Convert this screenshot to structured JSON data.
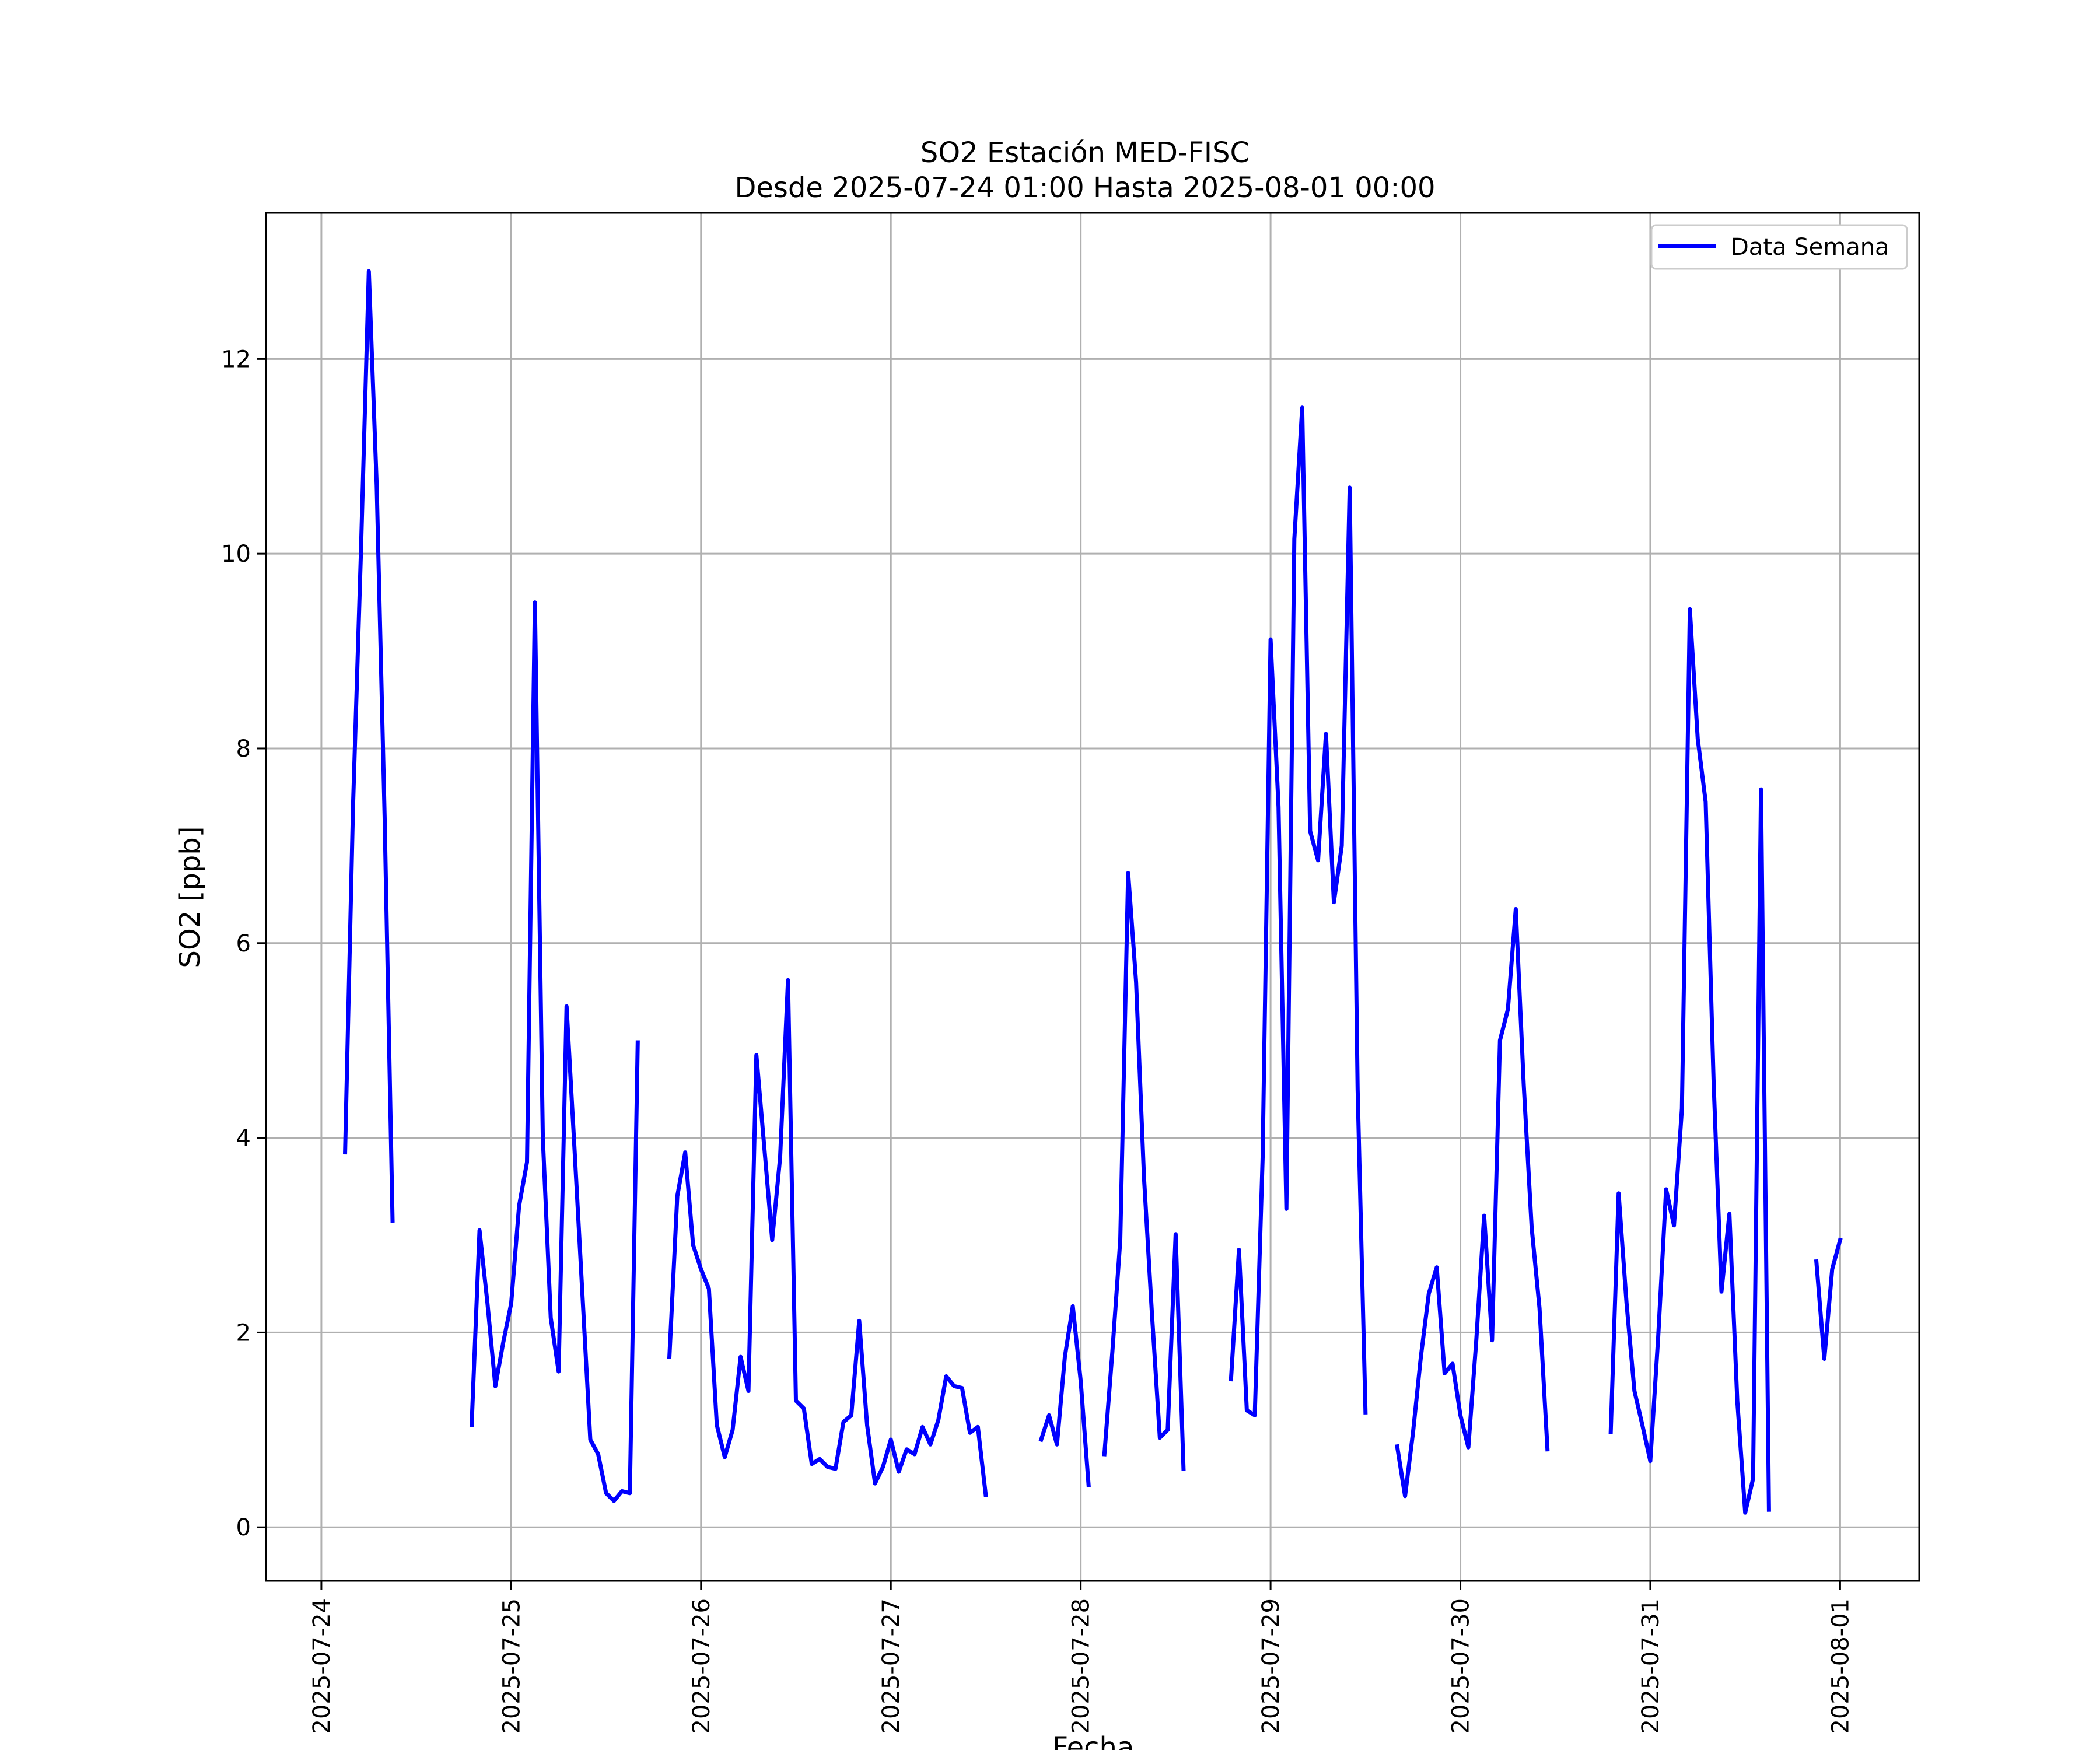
{
  "chart_data": {
    "type": "line",
    "title": "SO2 Estación MED-FISC",
    "subtitle": "Desde 2025-07-24 01:00 Hasta 2025-08-01 00:00",
    "xlabel": "Fecha",
    "ylabel": "SO2 [ppb]",
    "xlim": [
      "2025-07-23 17:00",
      "2025-08-01 10:00"
    ],
    "ylim": [
      -0.55,
      13.5
    ],
    "x_ticks": [
      "2025-07-24",
      "2025-07-25",
      "2025-07-26",
      "2025-07-27",
      "2025-07-28",
      "2025-07-29",
      "2025-07-30",
      "2025-07-31",
      "2025-08-01"
    ],
    "y_ticks": [
      0,
      2,
      4,
      6,
      8,
      10,
      12
    ],
    "grid": true,
    "legend_position": "top-right",
    "series": [
      {
        "name": "Data Semana",
        "color": "#0000ff",
        "segments": [
          [
            [
              "2025-07-24 03:00",
              3.85
            ],
            [
              "2025-07-24 04:00",
              7.4
            ],
            [
              "2025-07-24 05:00",
              10.0
            ],
            [
              "2025-07-24 06:00",
              12.9
            ],
            [
              "2025-07-24 07:00",
              10.7
            ],
            [
              "2025-07-24 08:00",
              7.3
            ],
            [
              "2025-07-24 09:00",
              3.15
            ]
          ],
          [
            [
              "2025-07-24 19:00",
              1.05
            ],
            [
              "2025-07-24 20:00",
              3.05
            ],
            [
              "2025-07-24 21:00",
              2.3
            ],
            [
              "2025-07-24 22:00",
              1.45
            ],
            [
              "2025-07-24 23:00",
              1.9
            ],
            [
              "2025-07-25 00:00",
              2.3
            ],
            [
              "2025-07-25 01:00",
              3.3
            ],
            [
              "2025-07-25 02:00",
              3.75
            ],
            [
              "2025-07-25 03:00",
              9.5
            ],
            [
              "2025-07-25 04:00",
              4.0
            ],
            [
              "2025-07-25 05:00",
              2.15
            ],
            [
              "2025-07-25 06:00",
              1.6
            ],
            [
              "2025-07-25 07:00",
              5.35
            ],
            [
              "2025-07-25 08:00",
              3.9
            ],
            [
              "2025-07-25 09:00",
              2.4
            ],
            [
              "2025-07-25 10:00",
              0.9
            ],
            [
              "2025-07-25 11:00",
              0.75
            ],
            [
              "2025-07-25 12:00",
              0.35
            ],
            [
              "2025-07-25 13:00",
              0.27
            ],
            [
              "2025-07-25 14:00",
              0.37
            ],
            [
              "2025-07-25 15:00",
              0.35
            ],
            [
              "2025-07-25 16:00",
              4.98
            ]
          ],
          [
            [
              "2025-07-25 20:00",
              1.75
            ],
            [
              "2025-07-25 21:00",
              3.4
            ],
            [
              "2025-07-25 22:00",
              3.85
            ],
            [
              "2025-07-25 23:00",
              2.9
            ],
            [
              "2025-07-26 00:00",
              2.65
            ],
            [
              "2025-07-26 01:00",
              2.45
            ],
            [
              "2025-07-26 02:00",
              1.05
            ],
            [
              "2025-07-26 03:00",
              0.72
            ],
            [
              "2025-07-26 04:00",
              1.0
            ],
            [
              "2025-07-26 05:00",
              1.75
            ],
            [
              "2025-07-26 06:00",
              1.4
            ],
            [
              "2025-07-26 07:00",
              4.85
            ],
            [
              "2025-07-26 08:00",
              3.9
            ],
            [
              "2025-07-26 09:00",
              2.95
            ],
            [
              "2025-07-26 10:00",
              3.8
            ],
            [
              "2025-07-26 11:00",
              5.62
            ],
            [
              "2025-07-26 12:00",
              1.3
            ],
            [
              "2025-07-26 13:00",
              1.22
            ],
            [
              "2025-07-26 14:00",
              0.65
            ],
            [
              "2025-07-26 15:00",
              0.7
            ],
            [
              "2025-07-26 16:00",
              0.62
            ],
            [
              "2025-07-26 17:00",
              0.6
            ],
            [
              "2025-07-26 18:00",
              1.08
            ],
            [
              "2025-07-26 19:00",
              1.15
            ],
            [
              "2025-07-26 20:00",
              2.12
            ],
            [
              "2025-07-26 21:00",
              1.05
            ],
            [
              "2025-07-26 22:00",
              0.45
            ],
            [
              "2025-07-26 23:00",
              0.62
            ],
            [
              "2025-07-27 00:00",
              0.9
            ],
            [
              "2025-07-27 01:00",
              0.57
            ],
            [
              "2025-07-27 02:00",
              0.8
            ],
            [
              "2025-07-27 03:00",
              0.75
            ],
            [
              "2025-07-27 04:00",
              1.03
            ],
            [
              "2025-07-27 05:00",
              0.85
            ],
            [
              "2025-07-27 06:00",
              1.1
            ],
            [
              "2025-07-27 07:00",
              1.55
            ],
            [
              "2025-07-27 08:00",
              1.45
            ],
            [
              "2025-07-27 09:00",
              1.43
            ],
            [
              "2025-07-27 10:00",
              0.97
            ],
            [
              "2025-07-27 11:00",
              1.03
            ],
            [
              "2025-07-27 12:00",
              0.33
            ]
          ],
          [
            [
              "2025-07-27 19:00",
              0.9
            ],
            [
              "2025-07-27 20:00",
              1.15
            ],
            [
              "2025-07-27 21:00",
              0.85
            ],
            [
              "2025-07-27 22:00",
              1.75
            ],
            [
              "2025-07-27 23:00",
              2.27
            ],
            [
              "2025-07-28 00:00",
              1.5
            ],
            [
              "2025-07-28 01:00",
              0.43
            ]
          ],
          [
            [
              "2025-07-28 03:00",
              0.75
            ],
            [
              "2025-07-28 04:00",
              1.8
            ],
            [
              "2025-07-28 05:00",
              2.95
            ],
            [
              "2025-07-28 06:00",
              6.72
            ],
            [
              "2025-07-28 07:00",
              5.6
            ],
            [
              "2025-07-28 08:00",
              3.6
            ],
            [
              "2025-07-28 09:00",
              2.2
            ],
            [
              "2025-07-28 10:00",
              0.92
            ],
            [
              "2025-07-28 11:00",
              1.0
            ],
            [
              "2025-07-28 12:00",
              3.01
            ],
            [
              "2025-07-28 13:00",
              0.6
            ]
          ],
          [
            [
              "2025-07-28 19:00",
              1.52
            ],
            [
              "2025-07-28 20:00",
              2.85
            ],
            [
              "2025-07-28 21:00",
              1.2
            ],
            [
              "2025-07-28 22:00",
              1.15
            ],
            [
              "2025-07-28 23:00",
              3.8
            ],
            [
              "2025-07-29 00:00",
              9.12
            ],
            [
              "2025-07-29 01:00",
              7.4
            ],
            [
              "2025-07-29 02:00",
              3.27
            ],
            [
              "2025-07-29 03:00",
              10.15
            ],
            [
              "2025-07-29 04:00",
              11.5
            ],
            [
              "2025-07-29 05:00",
              7.15
            ],
            [
              "2025-07-29 06:00",
              6.85
            ],
            [
              "2025-07-29 07:00",
              8.15
            ],
            [
              "2025-07-29 08:00",
              6.42
            ],
            [
              "2025-07-29 09:00",
              7.0
            ],
            [
              "2025-07-29 10:00",
              10.68
            ],
            [
              "2025-07-29 11:00",
              4.5
            ],
            [
              "2025-07-29 12:00",
              1.18
            ]
          ],
          [
            [
              "2025-07-29 16:00",
              0.83
            ],
            [
              "2025-07-29 17:00",
              0.32
            ],
            [
              "2025-07-29 18:00",
              0.97
            ],
            [
              "2025-07-29 19:00",
              1.75
            ],
            [
              "2025-07-29 20:00",
              2.4
            ],
            [
              "2025-07-29 21:00",
              2.67
            ],
            [
              "2025-07-29 22:00",
              1.58
            ],
            [
              "2025-07-29 23:00",
              1.68
            ],
            [
              "2025-07-30 00:00",
              1.15
            ],
            [
              "2025-07-30 01:00",
              0.82
            ],
            [
              "2025-07-30 02:00",
              1.92
            ],
            [
              "2025-07-30 03:00",
              3.2
            ],
            [
              "2025-07-30 04:00",
              1.92
            ],
            [
              "2025-07-30 05:00",
              5.0
            ],
            [
              "2025-07-30 06:00",
              5.32
            ],
            [
              "2025-07-30 07:00",
              6.35
            ],
            [
              "2025-07-30 08:00",
              4.55
            ],
            [
              "2025-07-30 09:00",
              3.08
            ],
            [
              "2025-07-30 10:00",
              2.25
            ],
            [
              "2025-07-30 11:00",
              0.8
            ]
          ],
          [
            [
              "2025-07-30 19:00",
              0.98
            ],
            [
              "2025-07-30 20:00",
              3.43
            ],
            [
              "2025-07-30 21:00",
              2.3
            ],
            [
              "2025-07-30 22:00",
              1.4
            ],
            [
              "2025-07-30 23:00",
              1.05
            ],
            [
              "2025-07-31 00:00",
              0.68
            ],
            [
              "2025-07-31 01:00",
              1.95
            ],
            [
              "2025-07-31 02:00",
              3.47
            ],
            [
              "2025-07-31 03:00",
              3.1
            ],
            [
              "2025-07-31 04:00",
              4.3
            ],
            [
              "2025-07-31 05:00",
              9.43
            ],
            [
              "2025-07-31 06:00",
              8.1
            ],
            [
              "2025-07-31 07:00",
              7.45
            ],
            [
              "2025-07-31 08:00",
              4.6
            ],
            [
              "2025-07-31 09:00",
              2.42
            ],
            [
              "2025-07-31 10:00",
              3.22
            ],
            [
              "2025-07-31 11:00",
              1.3
            ],
            [
              "2025-07-31 12:00",
              0.15
            ],
            [
              "2025-07-31 13:00",
              0.5
            ],
            [
              "2025-07-31 14:00",
              7.58
            ],
            [
              "2025-07-31 15:00",
              0.18
            ]
          ],
          [
            [
              "2025-07-31 21:00",
              2.73
            ],
            [
              "2025-07-31 22:00",
              1.73
            ],
            [
              "2025-07-31 23:00",
              2.65
            ],
            [
              "2025-08-01 00:00",
              2.95
            ]
          ]
        ]
      }
    ]
  }
}
